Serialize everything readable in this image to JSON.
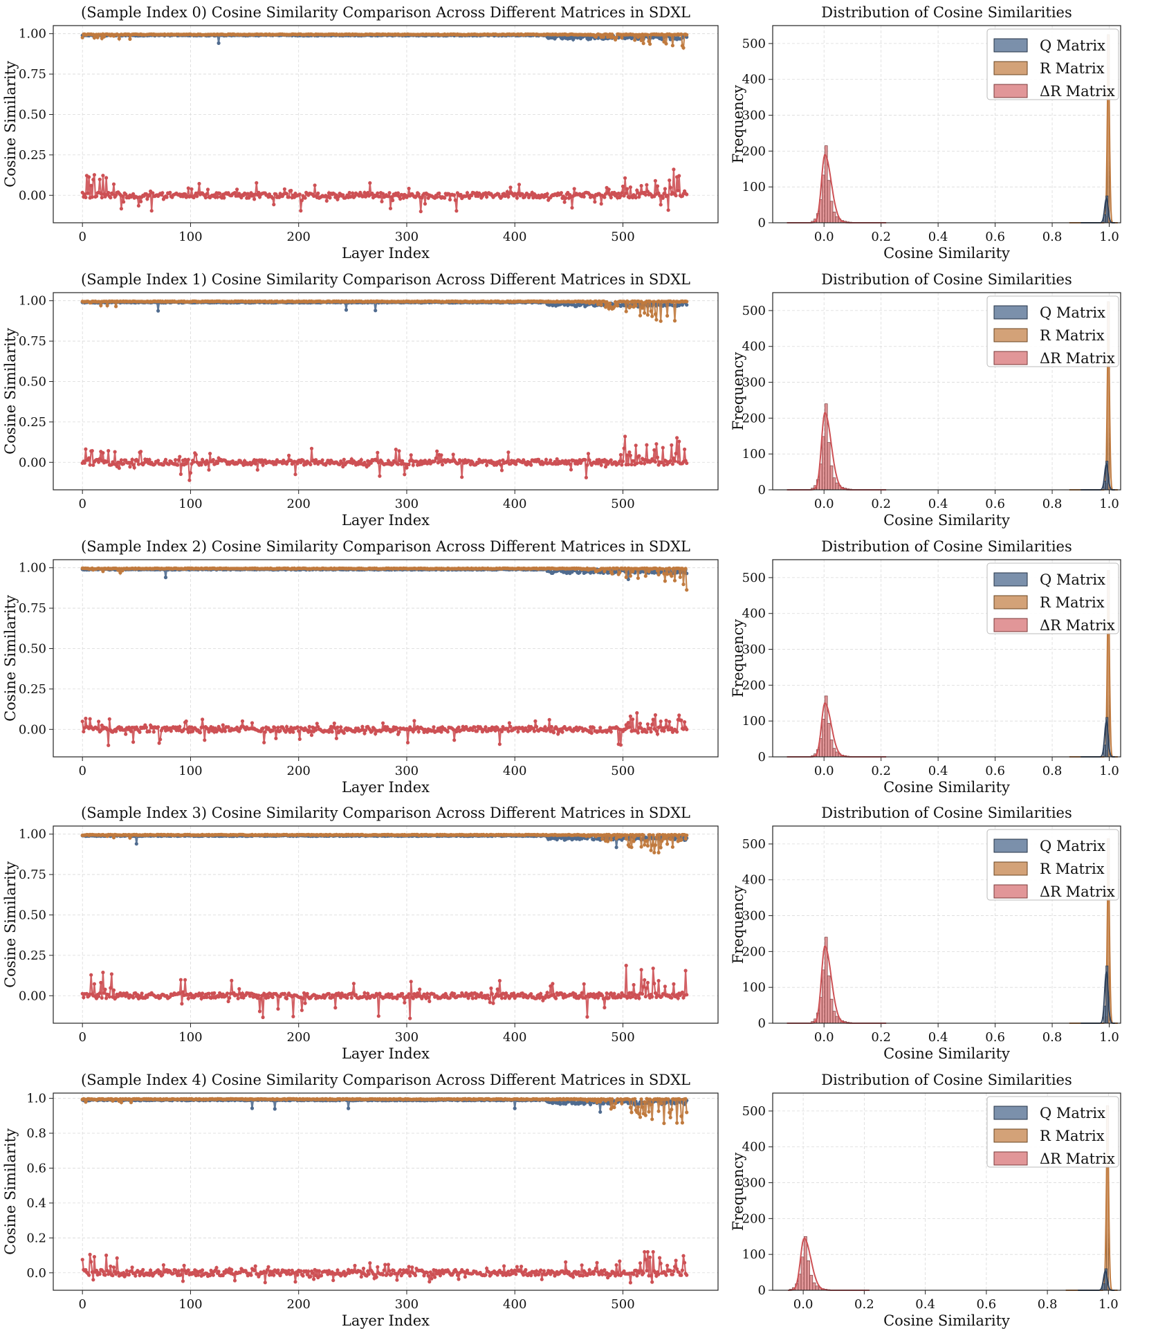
{
  "colors": {
    "q": "#4f6b8f",
    "r": "#c07a3e",
    "dr": "#cd5054"
  },
  "chart_data": [
    {
      "type": "line",
      "sample_index": 0,
      "title": "(Sample Index 0) Cosine Similarity Comparison Across Different Matrices in SDXL",
      "xlabel": "Layer Index",
      "ylabel": "Cosine Similarity",
      "xlim": [
        -27,
        588
      ],
      "ylim": [
        -0.17,
        1.05
      ],
      "xticks": [
        "0",
        "100",
        "200",
        "300",
        "400",
        "500"
      ],
      "yticks": [
        "0.00",
        "0.25",
        "0.50",
        "0.75",
        "1.00"
      ],
      "n_layers": 560,
      "series": [
        {
          "name": "Q Matrix",
          "baseline": 0.99,
          "dip_region": [
            430,
            560
          ]
        },
        {
          "name": "R Matrix",
          "baseline": 0.995,
          "tail_min": 0.9
        },
        {
          "name": "ΔR Matrix",
          "baseline": 0.0,
          "spread": [
            -0.1,
            0.16
          ]
        }
      ],
      "hist": {
        "type": "histogram",
        "title": "Distribution of Cosine Similarities",
        "xlabel": "Cosine Similarity",
        "ylabel": "Frequency",
        "xlim": [
          -0.18,
          1.04
        ],
        "ylim": [
          0,
          550
        ],
        "xticks": [
          "0.0",
          "0.2",
          "0.4",
          "0.6",
          "0.8",
          "1.0"
        ],
        "yticks": [
          "0",
          "100",
          "200",
          "300",
          "400",
          "500"
        ],
        "legend": [
          "Q Matrix",
          "R Matrix",
          "ΔR Matrix"
        ],
        "q_peak": {
          "x": 1.0,
          "count": 75
        },
        "r_peak": {
          "x": 1.0,
          "count": 525
        },
        "dr_peak": {
          "x": 0.0,
          "count": 215
        },
        "dr_kde_peak": 190
      }
    },
    {
      "type": "line",
      "sample_index": 1,
      "title": "(Sample Index 1) Cosine Similarity Comparison Across Different Matrices in SDXL",
      "xlabel": "Layer Index",
      "ylabel": "Cosine Similarity",
      "xlim": [
        -27,
        588
      ],
      "ylim": [
        -0.17,
        1.05
      ],
      "xticks": [
        "0",
        "100",
        "200",
        "300",
        "400",
        "500"
      ],
      "yticks": [
        "0.00",
        "0.25",
        "0.50",
        "0.75",
        "1.00"
      ],
      "n_layers": 560,
      "series": [
        {
          "name": "Q Matrix",
          "baseline": 0.99,
          "dip_region": [
            430,
            560
          ]
        },
        {
          "name": "R Matrix",
          "baseline": 0.995,
          "tail_min": 0.83
        },
        {
          "name": "ΔR Matrix",
          "baseline": 0.0,
          "spread": [
            -0.12,
            0.16
          ]
        }
      ],
      "hist": {
        "type": "histogram",
        "title": "Distribution of Cosine Similarities",
        "xlabel": "Cosine Similarity",
        "ylabel": "Frequency",
        "xlim": [
          -0.18,
          1.04
        ],
        "ylim": [
          0,
          550
        ],
        "xticks": [
          "0.0",
          "0.2",
          "0.4",
          "0.6",
          "0.8",
          "1.0"
        ],
        "yticks": [
          "0",
          "100",
          "200",
          "300",
          "400",
          "500"
        ],
        "legend": [
          "Q Matrix",
          "R Matrix",
          "ΔR Matrix"
        ],
        "q_peak": {
          "x": 1.0,
          "count": 80
        },
        "r_peak": {
          "x": 1.0,
          "count": 525
        },
        "dr_peak": {
          "x": 0.0,
          "count": 240
        },
        "dr_kde_peak": 215
      }
    },
    {
      "type": "line",
      "sample_index": 2,
      "title": "(Sample Index 2) Cosine Similarity Comparison Across Different Matrices in SDXL",
      "xlabel": "Layer Index",
      "ylabel": "Cosine Similarity",
      "xlim": [
        -27,
        588
      ],
      "ylim": [
        -0.17,
        1.05
      ],
      "xticks": [
        "0",
        "100",
        "200",
        "300",
        "400",
        "500"
      ],
      "yticks": [
        "0.00",
        "0.25",
        "0.50",
        "0.75",
        "1.00"
      ],
      "n_layers": 560,
      "series": [
        {
          "name": "Q Matrix",
          "baseline": 0.99,
          "dip_region": [
            430,
            560
          ]
        },
        {
          "name": "R Matrix",
          "baseline": 0.995,
          "tail_min": 0.85
        },
        {
          "name": "ΔR Matrix",
          "baseline": 0.0,
          "spread": [
            -0.1,
            0.11
          ]
        }
      ],
      "hist": {
        "type": "histogram",
        "title": "Distribution of Cosine Similarities",
        "xlabel": "Cosine Similarity",
        "ylabel": "Frequency",
        "xlim": [
          -0.18,
          1.04
        ],
        "ylim": [
          0,
          550
        ],
        "xticks": [
          "0.0",
          "0.2",
          "0.4",
          "0.6",
          "0.8",
          "1.0"
        ],
        "yticks": [
          "0",
          "100",
          "200",
          "300",
          "400",
          "500"
        ],
        "legend": [
          "Q Matrix",
          "R Matrix",
          "ΔR Matrix"
        ],
        "q_peak": {
          "x": 1.0,
          "count": 110
        },
        "r_peak": {
          "x": 1.0,
          "count": 520
        },
        "dr_peak": {
          "x": 0.0,
          "count": 170
        },
        "dr_kde_peak": 150
      }
    },
    {
      "type": "line",
      "sample_index": 3,
      "title": "(Sample Index 3) Cosine Similarity Comparison Across Different Matrices in SDXL",
      "xlabel": "Layer Index",
      "ylabel": "Cosine Similarity",
      "xlim": [
        -27,
        588
      ],
      "ylim": [
        -0.17,
        1.05
      ],
      "xticks": [
        "0",
        "100",
        "200",
        "300",
        "400",
        "500"
      ],
      "yticks": [
        "0.00",
        "0.25",
        "0.50",
        "0.75",
        "1.00"
      ],
      "n_layers": 560,
      "series": [
        {
          "name": "Q Matrix",
          "baseline": 0.99,
          "dip_region": [
            430,
            560
          ]
        },
        {
          "name": "R Matrix",
          "baseline": 0.995,
          "tail_min": 0.83
        },
        {
          "name": "ΔR Matrix",
          "baseline": 0.0,
          "spread": [
            -0.14,
            0.2
          ]
        }
      ],
      "hist": {
        "type": "histogram",
        "title": "Distribution of Cosine Similarities",
        "xlabel": "Cosine Similarity",
        "ylabel": "Frequency",
        "xlim": [
          -0.18,
          1.04
        ],
        "ylim": [
          0,
          550
        ],
        "xticks": [
          "0.0",
          "0.2",
          "0.4",
          "0.6",
          "0.8",
          "1.0"
        ],
        "yticks": [
          "0",
          "100",
          "200",
          "300",
          "400",
          "500"
        ],
        "legend": [
          "Q Matrix",
          "R Matrix",
          "ΔR Matrix"
        ],
        "q_peak": {
          "x": 1.0,
          "count": 160
        },
        "r_peak": {
          "x": 1.0,
          "count": 515
        },
        "dr_peak": {
          "x": 0.0,
          "count": 240
        },
        "dr_kde_peak": 215
      }
    },
    {
      "type": "line",
      "sample_index": 4,
      "title": "(Sample Index 4) Cosine Similarity Comparison Across Different Matrices in SDXL",
      "xlabel": "Layer Index",
      "ylabel": "Cosine Similarity",
      "xlim": [
        -27,
        588
      ],
      "ylim": [
        -0.1,
        1.03
      ],
      "xticks": [
        "0",
        "100",
        "200",
        "300",
        "400",
        "500"
      ],
      "yticks": [
        "0.0",
        "0.2",
        "0.4",
        "0.6",
        "0.8",
        "1.0"
      ],
      "n_layers": 560,
      "series": [
        {
          "name": "Q Matrix",
          "baseline": 0.99,
          "dip_region": [
            430,
            560
          ]
        },
        {
          "name": "R Matrix",
          "baseline": 0.995,
          "tail_min": 0.8
        },
        {
          "name": "ΔR Matrix",
          "baseline": 0.0,
          "spread": [
            -0.06,
            0.12
          ]
        }
      ],
      "hist": {
        "type": "histogram",
        "title": "Distribution of Cosine Similarities",
        "xlabel": "Cosine Similarity",
        "ylabel": "Frequency",
        "xlim": [
          -0.1,
          1.04
        ],
        "ylim": [
          0,
          550
        ],
        "xticks": [
          "0.0",
          "0.2",
          "0.4",
          "0.6",
          "0.8",
          "1.0"
        ],
        "yticks": [
          "0",
          "100",
          "200",
          "300",
          "400",
          "500"
        ],
        "legend": [
          "Q Matrix",
          "R Matrix",
          "ΔR Matrix"
        ],
        "q_peak": {
          "x": 1.0,
          "count": 60
        },
        "r_peak": {
          "x": 1.0,
          "count": 515
        },
        "dr_peak": {
          "x": 0.0,
          "count": 150
        },
        "dr_kde_peak": 145
      }
    }
  ]
}
